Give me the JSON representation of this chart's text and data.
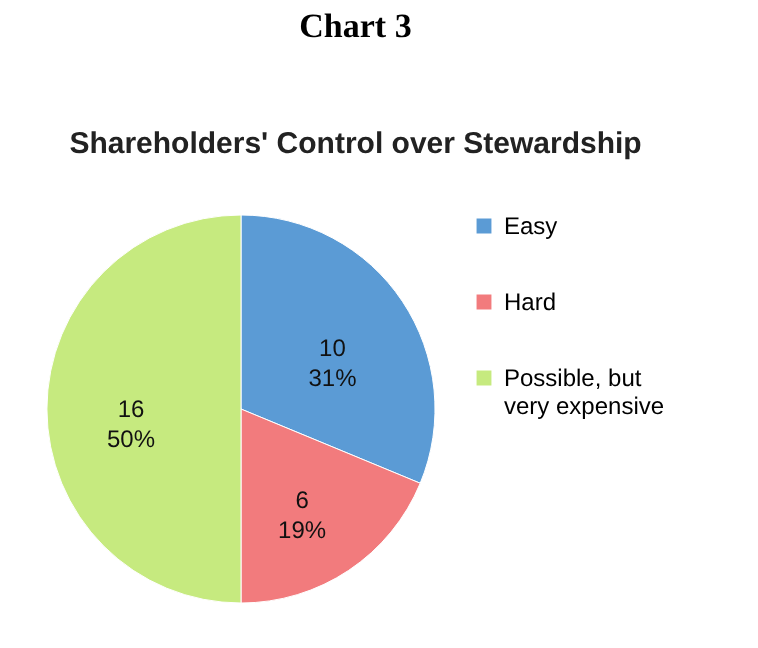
{
  "chart_data": {
    "type": "pie",
    "title": "Chart 3",
    "subtitle": "Shareholders' Control over Stewardship",
    "categories": [
      "Easy",
      "Hard",
      "Possible, but very expensive"
    ],
    "values": [
      10,
      6,
      16
    ],
    "value_labels": [
      "10\n31%",
      "6\n19%",
      "16\n50%"
    ],
    "colors": [
      "#5b9bd5",
      "#f27b7d",
      "#c6ea7f"
    ],
    "legend": "right"
  }
}
